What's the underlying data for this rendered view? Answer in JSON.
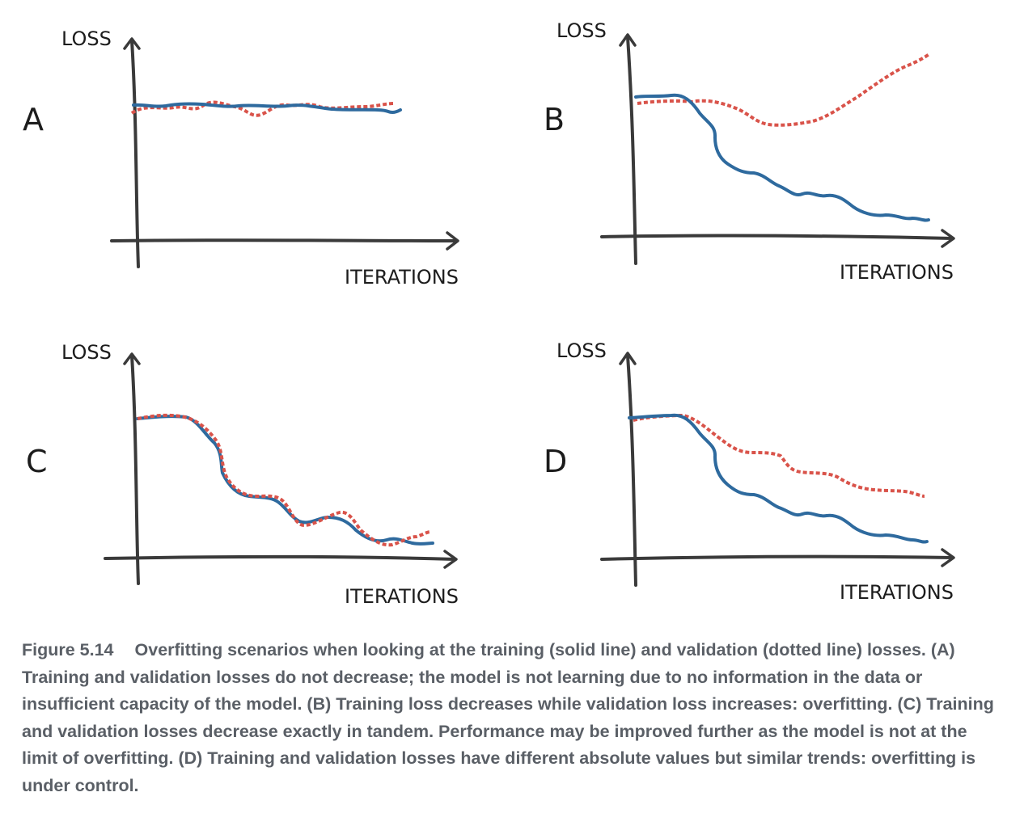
{
  "panels": [
    {
      "id": "A",
      "letter": "A",
      "ylabel": "LOSS",
      "xlabel": "ITERATIONS"
    },
    {
      "id": "B",
      "letter": "B",
      "ylabel": "LOSS",
      "xlabel": "ITERATIONS"
    },
    {
      "id": "C",
      "letter": "C",
      "ylabel": "LOSS",
      "xlabel": "ITERATIONS"
    },
    {
      "id": "D",
      "letter": "D",
      "ylabel": "LOSS",
      "xlabel": "ITERATIONS"
    }
  ],
  "colors": {
    "training": "#2e6a9e",
    "validation": "#d9534a",
    "axis": "#3a3a3a",
    "caption": "#5a5f66"
  },
  "caption": {
    "figure_label": "Figure 5.14",
    "text": "Overfitting scenarios when looking at the training (solid line) and validation (dotted line) losses. (A) Training and validation losses do not decrease; the model is not learning due to no information in the data or insufficient capacity of the model. (B) Training loss decreases while validation loss increases: overfitting. (C) Training and validation losses decrease exactly in tandem. Performance may be improved further as the model is not at the limit of overfitting. (D) Training and validation losses have different absolute values but similar trends: overfitting is under control."
  }
}
